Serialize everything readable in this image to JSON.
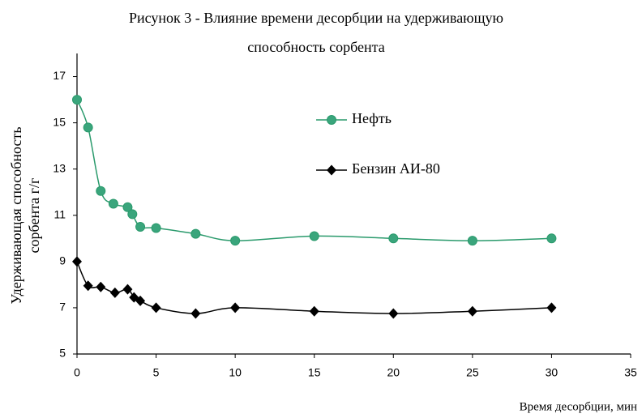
{
  "chart_data": {
    "type": "line",
    "title": [
      "Рисунок 3 - Влияние времени десорбции на удерживающую",
      "способность сорбента"
    ],
    "y_label": [
      "Удерживающая способность",
      "сорбента г/г"
    ],
    "x_label": "Время десорбции, мин",
    "xlim": [
      0,
      35
    ],
    "xticks": [
      0,
      5,
      10,
      15,
      20,
      25,
      30,
      35
    ],
    "ylim": [
      5,
      18
    ],
    "yticks": [
      5,
      7,
      9,
      11,
      13,
      15,
      17
    ],
    "grid": false,
    "legend": "center",
    "series": [
      {
        "name": "Нефть",
        "color": "#2a9a6c",
        "marker": "circle",
        "x": [
          0,
          0.7,
          1.5,
          2.3,
          3.2,
          3.5,
          4,
          5,
          7.5,
          10,
          15,
          20,
          25,
          30
        ],
        "values": [
          16.0,
          14.8,
          12.05,
          11.5,
          11.35,
          11.05,
          10.5,
          10.45,
          10.2,
          9.9,
          10.1,
          10.0,
          9.9,
          10.0
        ]
      },
      {
        "name": "Бензин АИ-80",
        "color": "#000000",
        "marker": "diamond",
        "x": [
          0,
          0.7,
          1.5,
          2.4,
          3.2,
          3.6,
          4,
          5,
          7.5,
          10,
          15,
          20,
          25,
          30
        ],
        "values": [
          9.0,
          7.95,
          7.9,
          7.65,
          7.8,
          7.45,
          7.3,
          7.0,
          6.75,
          7.0,
          6.85,
          6.75,
          6.85,
          7.0
        ]
      }
    ]
  }
}
